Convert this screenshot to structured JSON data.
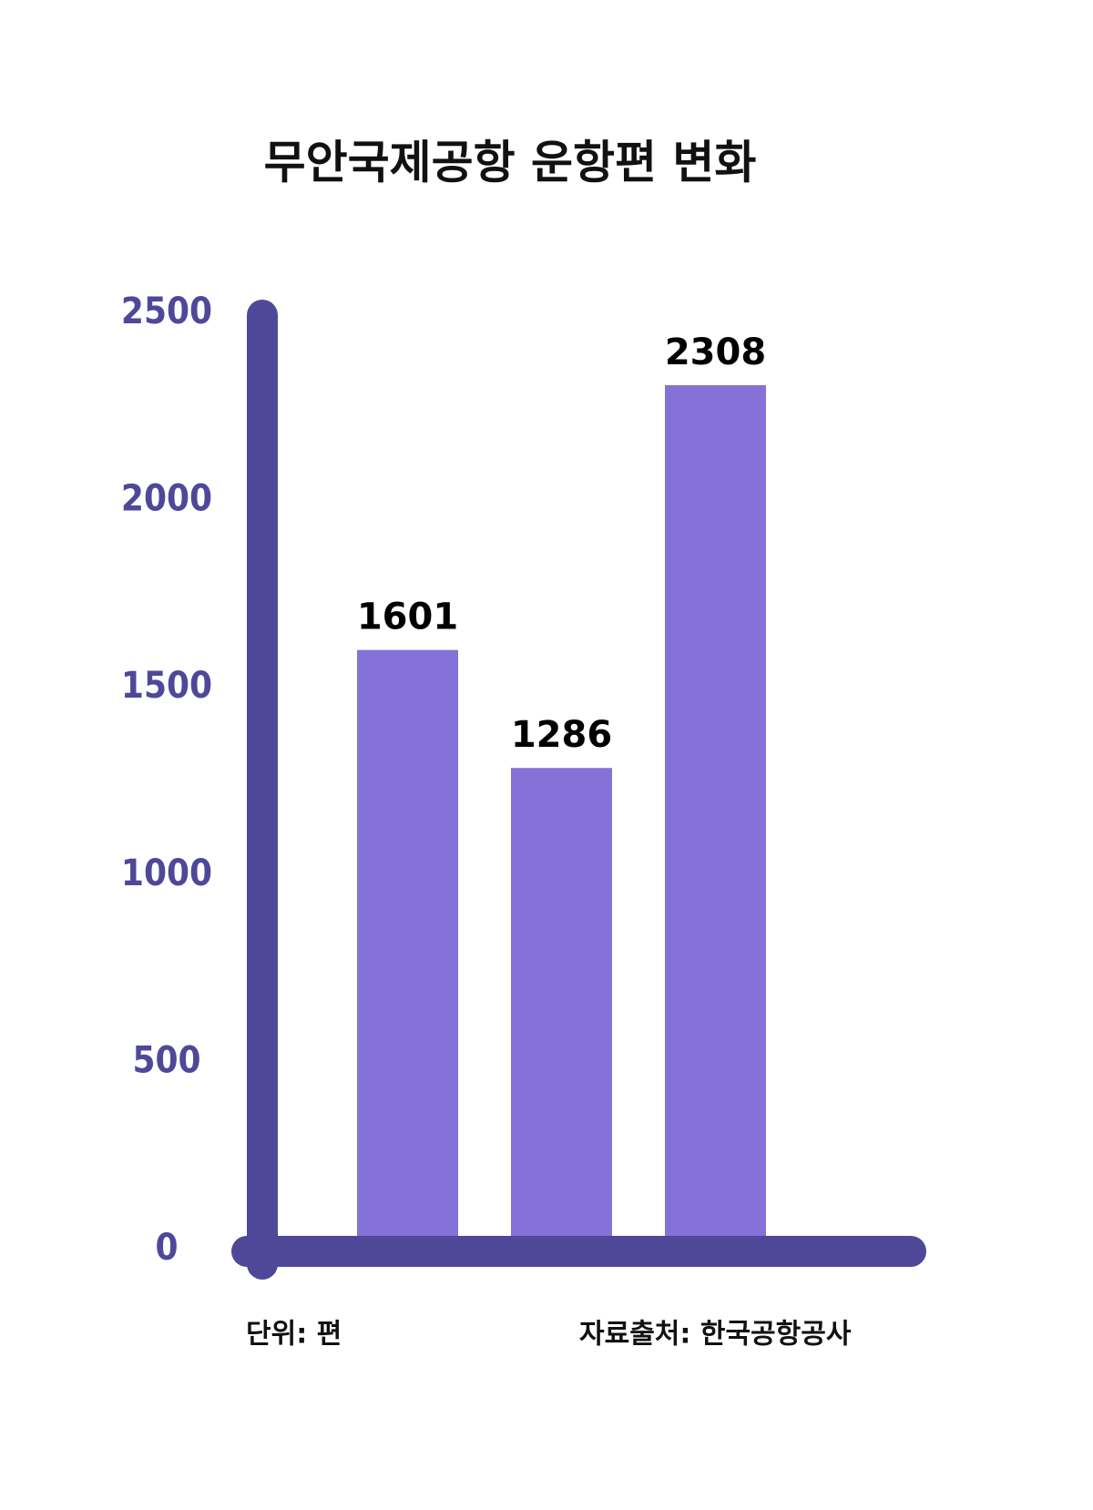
{
  "chart_data": {
    "type": "bar",
    "title": "무안국제공항 운항편 변화",
    "values": [
      1601,
      1286,
      2308
    ],
    "color": "#8572d9",
    "axis_color": "#4f4899",
    "ylim": [
      0,
      2500
    ],
    "yticks": [
      0,
      500,
      1000,
      1500,
      2000,
      2500
    ],
    "unit_note": "단위: 편",
    "source_note": "자료출처: 한국공항공사"
  }
}
